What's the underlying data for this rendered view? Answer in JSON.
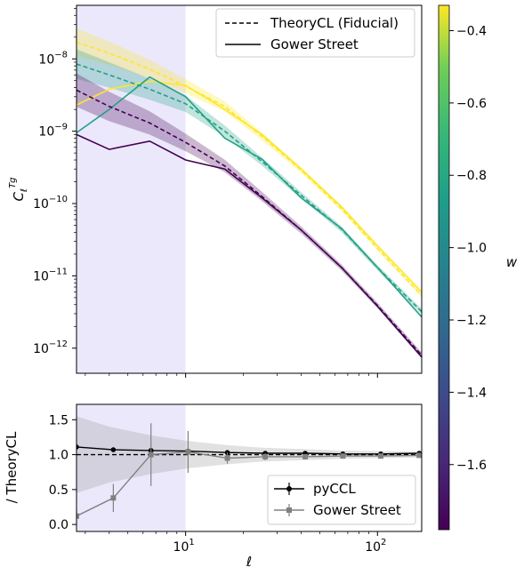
{
  "chart_data": [
    {
      "type": "line",
      "panel": "top",
      "xscale": "log",
      "yscale": "log",
      "xlim": [
        2.7,
        170
      ],
      "ylim": [
        4.5e-13,
        5.5e-08
      ],
      "ylabel": "C_ℓ^{Tg}",
      "yticks": [
        {
          "v": 1e-12,
          "mant": "10",
          "exp": "−12"
        },
        {
          "v": 1e-11,
          "mant": "10",
          "exp": "−11"
        },
        {
          "v": 1e-10,
          "mant": "10",
          "exp": "−10"
        },
        {
          "v": 1e-09,
          "mant": "10",
          "exp": "−9"
        },
        {
          "v": 1e-08,
          "mant": "10",
          "exp": "−8"
        }
      ],
      "grid": false,
      "legend_position": "top-right",
      "legend": [
        {
          "label": "TheoryCL (Fiducial)",
          "style": "dashed"
        },
        {
          "label": "Gower Street",
          "style": "solid"
        }
      ],
      "shaded_region": {
        "x": [
          2.7,
          10
        ],
        "color": "#ebe8fb"
      },
      "series": [
        {
          "color": "#fde725",
          "w": -0.35,
          "theory": {
            "x": [
              2.7,
              4,
              6.5,
              10,
              16,
              25,
              40,
              65,
              100,
              170
            ],
            "y": [
              1.7e-08,
              1.2e-08,
              7.2e-09,
              4.2e-09,
              2.2e-09,
              8.5e-10,
              2.9e-10,
              8.5e-11,
              2.4e-11,
              5.4e-12
            ]
          },
          "band_factor": [
            1.55,
            1.45,
            1.35,
            1.25,
            1.18,
            1.13,
            1.1,
            1.09,
            1.08,
            1.08
          ],
          "gower": {
            "x": [
              2.7,
              4,
              6.5,
              10,
              16,
              25,
              40,
              65,
              100,
              170
            ],
            "y": [
              2.3e-09,
              3.8e-09,
              4.9e-09,
              4.3e-09,
              2e-09,
              9e-10,
              3e-10,
              9e-11,
              2.6e-11,
              6e-12
            ]
          }
        },
        {
          "color": "#21a185",
          "w": -0.95,
          "theory": {
            "x": [
              2.7,
              4,
              6.5,
              10,
              16,
              25,
              40,
              65,
              100,
              170
            ],
            "y": [
              8.5e-09,
              6e-09,
              3.8e-09,
              2.4e-09,
              1e-09,
              3.8e-10,
              1.3e-10,
              4.4e-11,
              1.3e-11,
              3.2e-12
            ]
          },
          "band_factor": [
            1.6,
            1.5,
            1.4,
            1.3,
            1.2,
            1.14,
            1.11,
            1.1,
            1.09,
            1.09
          ],
          "gower": {
            "x": [
              2.7,
              4,
              6.5,
              10,
              16,
              25,
              40,
              65,
              100,
              170
            ],
            "y": [
              9.5e-10,
              2e-09,
              5.6e-09,
              3e-09,
              8e-10,
              4.1e-10,
              1.2e-10,
              4.5e-11,
              1.3e-11,
              2.7e-12
            ]
          }
        },
        {
          "color": "#440154",
          "w": -1.75,
          "theory": {
            "x": [
              2.7,
              4,
              6.5,
              10,
              16,
              25,
              40,
              65,
              100,
              170
            ],
            "y": [
              3.7e-09,
              2.2e-09,
              1.3e-09,
              7e-10,
              3.3e-10,
              1.25e-10,
              4.3e-11,
              1.3e-11,
              3.9e-12,
              8e-13
            ]
          },
          "band_factor": [
            1.7,
            1.6,
            1.45,
            1.32,
            1.22,
            1.16,
            1.12,
            1.1,
            1.09,
            1.09
          ],
          "gower": {
            "x": [
              2.7,
              4,
              6.5,
              10,
              16,
              25,
              40,
              65,
              100,
              170
            ],
            "y": [
              9e-10,
              5.6e-10,
              7.3e-10,
              4e-10,
              3e-10,
              1.2e-10,
              4.3e-11,
              1.3e-11,
              3.8e-12,
              7.5e-13
            ]
          }
        }
      ]
    },
    {
      "type": "line",
      "panel": "bottom",
      "xscale": "log",
      "xlim": [
        2.7,
        170
      ],
      "ylim": [
        -0.1,
        1.72
      ],
      "xlabel": "ℓ",
      "ylabel": "/ TheoryCL",
      "xticks": [
        {
          "v": 10,
          "mant": "10",
          "exp": "1"
        },
        {
          "v": 100,
          "mant": "10",
          "exp": "2"
        }
      ],
      "yticks": [
        {
          "v": 0.0,
          "label": "0.0"
        },
        {
          "v": 0.5,
          "label": "0.5"
        },
        {
          "v": 1.0,
          "label": "1.0"
        },
        {
          "v": 1.5,
          "label": "1.5"
        }
      ],
      "legend_position": "bottom-right",
      "legend": [
        {
          "label": "pyCCL",
          "color": "#000000"
        },
        {
          "label": "Gower Street",
          "color": "#808080"
        }
      ],
      "reference_line": 1.0,
      "shaded_region": {
        "x": [
          2.7,
          10
        ],
        "color": "#ebe8fb"
      },
      "band": {
        "x": [
          2.7,
          4,
          6.5,
          10,
          16,
          25,
          40,
          65,
          100,
          170
        ],
        "lower": [
          0.45,
          0.6,
          0.72,
          0.8,
          0.86,
          0.9,
          0.92,
          0.94,
          0.95,
          0.96
        ],
        "upper": [
          1.55,
          1.4,
          1.28,
          1.2,
          1.14,
          1.1,
          1.08,
          1.06,
          1.05,
          1.04
        ]
      },
      "series": [
        {
          "name": "pyCCL",
          "color": "#000000",
          "x": [
            2.7,
            4.2,
            6.6,
            10.3,
            16.5,
            26,
            42,
            66,
            104,
            165
          ],
          "y": [
            1.11,
            1.07,
            1.06,
            1.05,
            1.03,
            1.02,
            1.02,
            1.01,
            1.01,
            1.02
          ]
        },
        {
          "name": "Gower Street",
          "color": "#808080",
          "x": [
            2.7,
            4.2,
            6.6,
            10.3,
            16.5,
            26,
            42,
            66,
            104,
            165
          ],
          "y": [
            0.12,
            0.38,
            1.0,
            1.04,
            0.95,
            0.97,
            0.97,
            0.98,
            0.98,
            0.99
          ],
          "err": [
            0.1,
            0.2,
            0.45,
            0.3,
            0.08,
            0.05,
            0.04,
            0.03,
            0.02,
            0.03
          ]
        }
      ]
    },
    {
      "type": "colorbar",
      "label": "w",
      "range": [
        -1.78,
        -0.33
      ],
      "colormap": "viridis",
      "ticks": [
        -0.4,
        -0.6,
        -0.8,
        -1.0,
        -1.2,
        -1.4,
        -1.6
      ],
      "tick_labels": [
        "−0.4",
        "−0.6",
        "−0.8",
        "−1.0",
        "−1.2",
        "−1.4",
        "−1.6"
      ]
    }
  ]
}
